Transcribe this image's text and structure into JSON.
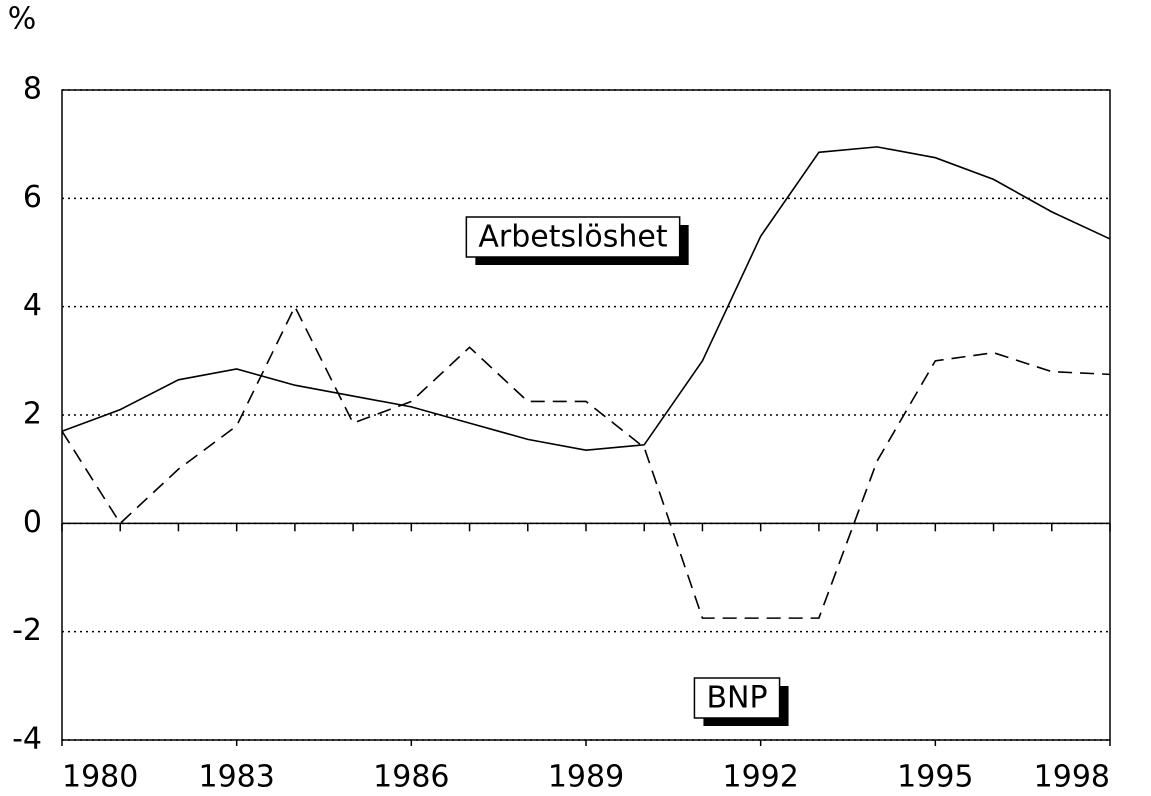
{
  "chart_data": {
    "type": "line",
    "y_label": "%",
    "x": [
      1980,
      1981,
      1982,
      1983,
      1984,
      1985,
      1986,
      1987,
      1988,
      1989,
      1990,
      1991,
      1992,
      1993,
      1994,
      1995,
      1996,
      1997,
      1998
    ],
    "series": [
      {
        "name": "Arbetslöshet",
        "color": "#000000",
        "dash": "solid",
        "values": [
          1.7,
          2.1,
          2.65,
          2.85,
          2.55,
          2.35,
          2.15,
          1.85,
          1.55,
          1.35,
          1.45,
          3.0,
          5.3,
          6.85,
          6.95,
          6.75,
          6.35,
          5.75,
          5.25
        ]
      },
      {
        "name": "BNP",
        "color": "#000000",
        "dash": "dashed",
        "values": [
          1.7,
          0.0,
          1.0,
          1.8,
          4.0,
          1.85,
          2.25,
          3.25,
          2.25,
          2.25,
          1.4,
          -1.75,
          -1.75,
          -1.75,
          1.15,
          3.0,
          3.15,
          2.8,
          2.75
        ]
      }
    ],
    "xlim": [
      1980,
      1998
    ],
    "xticks": [
      1980,
      1983,
      1986,
      1989,
      1992,
      1995,
      1998
    ],
    "ylim": [
      -4,
      8
    ],
    "yticks": [
      -4,
      -2,
      0,
      2,
      4,
      6,
      8
    ],
    "grid": true
  }
}
